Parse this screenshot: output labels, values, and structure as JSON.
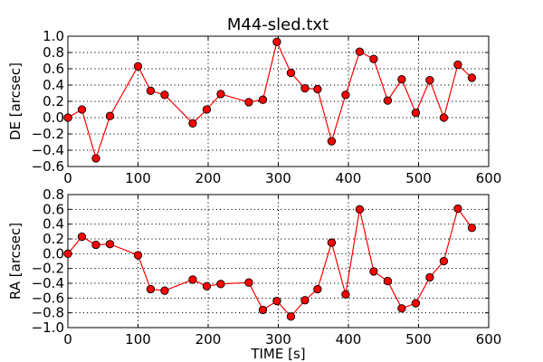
{
  "title": "M44-sled.txt",
  "colors": {
    "marker": "#ff0000",
    "line": "#ff0000",
    "marker_edge": "#000000"
  },
  "chart_data": [
    {
      "type": "line",
      "xlabel": "",
      "ylabel": "DE [arcsec]",
      "xlim": [
        0,
        600
      ],
      "ylim": [
        -0.6,
        1.0
      ],
      "grid": true,
      "x_ticks": [
        0,
        100,
        200,
        300,
        400,
        500,
        600
      ],
      "x_tick_labels": [
        "0",
        "100",
        "200",
        "300",
        "400",
        "500",
        "600"
      ],
      "y_ticks": [
        -0.6,
        -0.4,
        -0.2,
        0.0,
        0.2,
        0.4,
        0.6,
        0.8,
        1.0
      ],
      "y_tick_labels": [
        "−0.6",
        "−0.4",
        "−0.2",
        "0.0",
        "0.2",
        "0.4",
        "0.6",
        "0.8",
        "1.0"
      ],
      "x": [
        0,
        20,
        40,
        60,
        100,
        118,
        138,
        178,
        198,
        218,
        258,
        278,
        298,
        318,
        338,
        356,
        376,
        396,
        416,
        436,
        456,
        476,
        496,
        516,
        536,
        556,
        576
      ],
      "y": [
        0.0,
        0.1,
        -0.5,
        0.02,
        0.63,
        0.33,
        0.28,
        -0.07,
        0.1,
        0.29,
        0.19,
        0.22,
        0.93,
        0.55,
        0.36,
        0.35,
        -0.29,
        0.28,
        0.81,
        0.72,
        0.21,
        0.47,
        0.06,
        0.46,
        0.0,
        0.65,
        0.49
      ]
    },
    {
      "type": "line",
      "xlabel": "TIME [s]",
      "ylabel": "RA [arcsec]",
      "xlim": [
        0,
        600
      ],
      "ylim": [
        -1.0,
        0.8
      ],
      "grid": true,
      "x_ticks": [
        0,
        100,
        200,
        300,
        400,
        500,
        600
      ],
      "x_tick_labels": [
        "0",
        "100",
        "200",
        "300",
        "400",
        "500",
        "600"
      ],
      "y_ticks": [
        -1.0,
        -0.8,
        -0.6,
        -0.4,
        -0.2,
        0.0,
        0.2,
        0.4,
        0.6,
        0.8
      ],
      "y_tick_labels": [
        "−1.0",
        "−0.8",
        "−0.6",
        "−0.4",
        "−0.2",
        "0.0",
        "0.2",
        "0.4",
        "0.6",
        "0.8"
      ],
      "x": [
        0,
        20,
        40,
        60,
        100,
        118,
        138,
        178,
        198,
        218,
        258,
        278,
        298,
        318,
        338,
        356,
        376,
        396,
        416,
        436,
        456,
        476,
        496,
        516,
        536,
        556,
        576
      ],
      "y": [
        0.0,
        0.23,
        0.12,
        0.13,
        -0.02,
        -0.48,
        -0.5,
        -0.35,
        -0.44,
        -0.41,
        -0.39,
        -0.76,
        -0.64,
        -0.85,
        -0.63,
        -0.48,
        0.15,
        -0.55,
        0.6,
        -0.24,
        -0.37,
        -0.74,
        -0.67,
        -0.32,
        -0.1,
        0.61,
        0.35
      ]
    }
  ]
}
